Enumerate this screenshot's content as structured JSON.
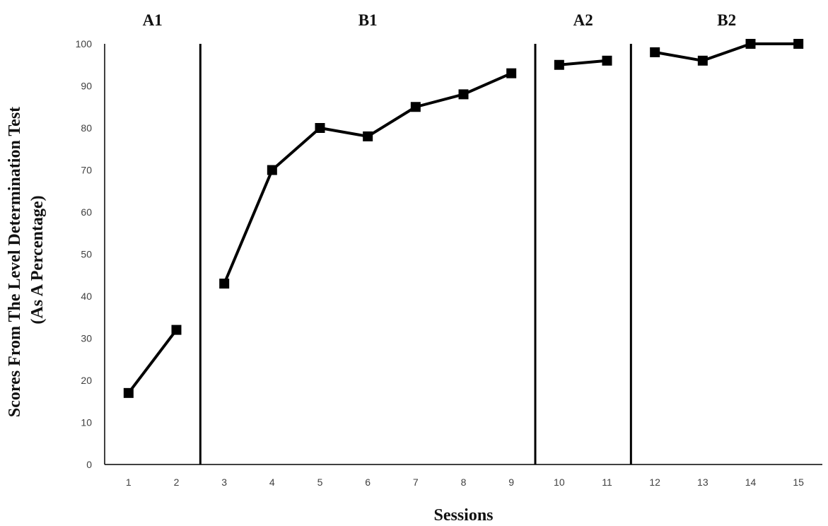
{
  "chart_data": {
    "type": "line",
    "title": "",
    "xlabel": "Sessions",
    "ylabel_lines": [
      "Scores From The Level Determination Test",
      "(As A Percentage)"
    ],
    "ylim": [
      0,
      100
    ],
    "y_ticks": [
      0,
      10,
      20,
      30,
      40,
      50,
      60,
      70,
      80,
      90,
      100
    ],
    "x_ticks": [
      1,
      2,
      3,
      4,
      5,
      6,
      7,
      8,
      9,
      10,
      11,
      12,
      13,
      14,
      15
    ],
    "grid": false,
    "line_color": "#000000",
    "marker": "square",
    "phases": [
      {
        "label": "A1",
        "sessions": [
          1,
          2
        ],
        "values": [
          17,
          32
        ]
      },
      {
        "label": "B1",
        "sessions": [
          3,
          4,
          5,
          6,
          7,
          8,
          9
        ],
        "values": [
          43,
          70,
          80,
          78,
          85,
          88,
          93
        ]
      },
      {
        "label": "A2",
        "sessions": [
          10,
          11
        ],
        "values": [
          95,
          96
        ]
      },
      {
        "label": "B2",
        "sessions": [
          12,
          13,
          14,
          15
        ],
        "values": [
          98,
          96,
          100,
          100
        ]
      }
    ],
    "phase_change_lines_after_session": [
      2,
      9,
      11
    ]
  }
}
